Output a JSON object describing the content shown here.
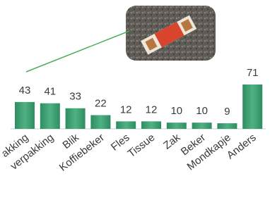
{
  "chart_data": {
    "type": "bar",
    "categories": [
      "akking",
      "verpakking",
      "Blik",
      "Koffiebeker",
      "Fles",
      "Tissue",
      "Zak",
      "Beker",
      "Mondkapje",
      "Anders"
    ],
    "values": [
      43,
      41,
      33,
      22,
      12,
      12,
      10,
      10,
      9,
      71
    ],
    "color": "#3f9e72"
  }
}
